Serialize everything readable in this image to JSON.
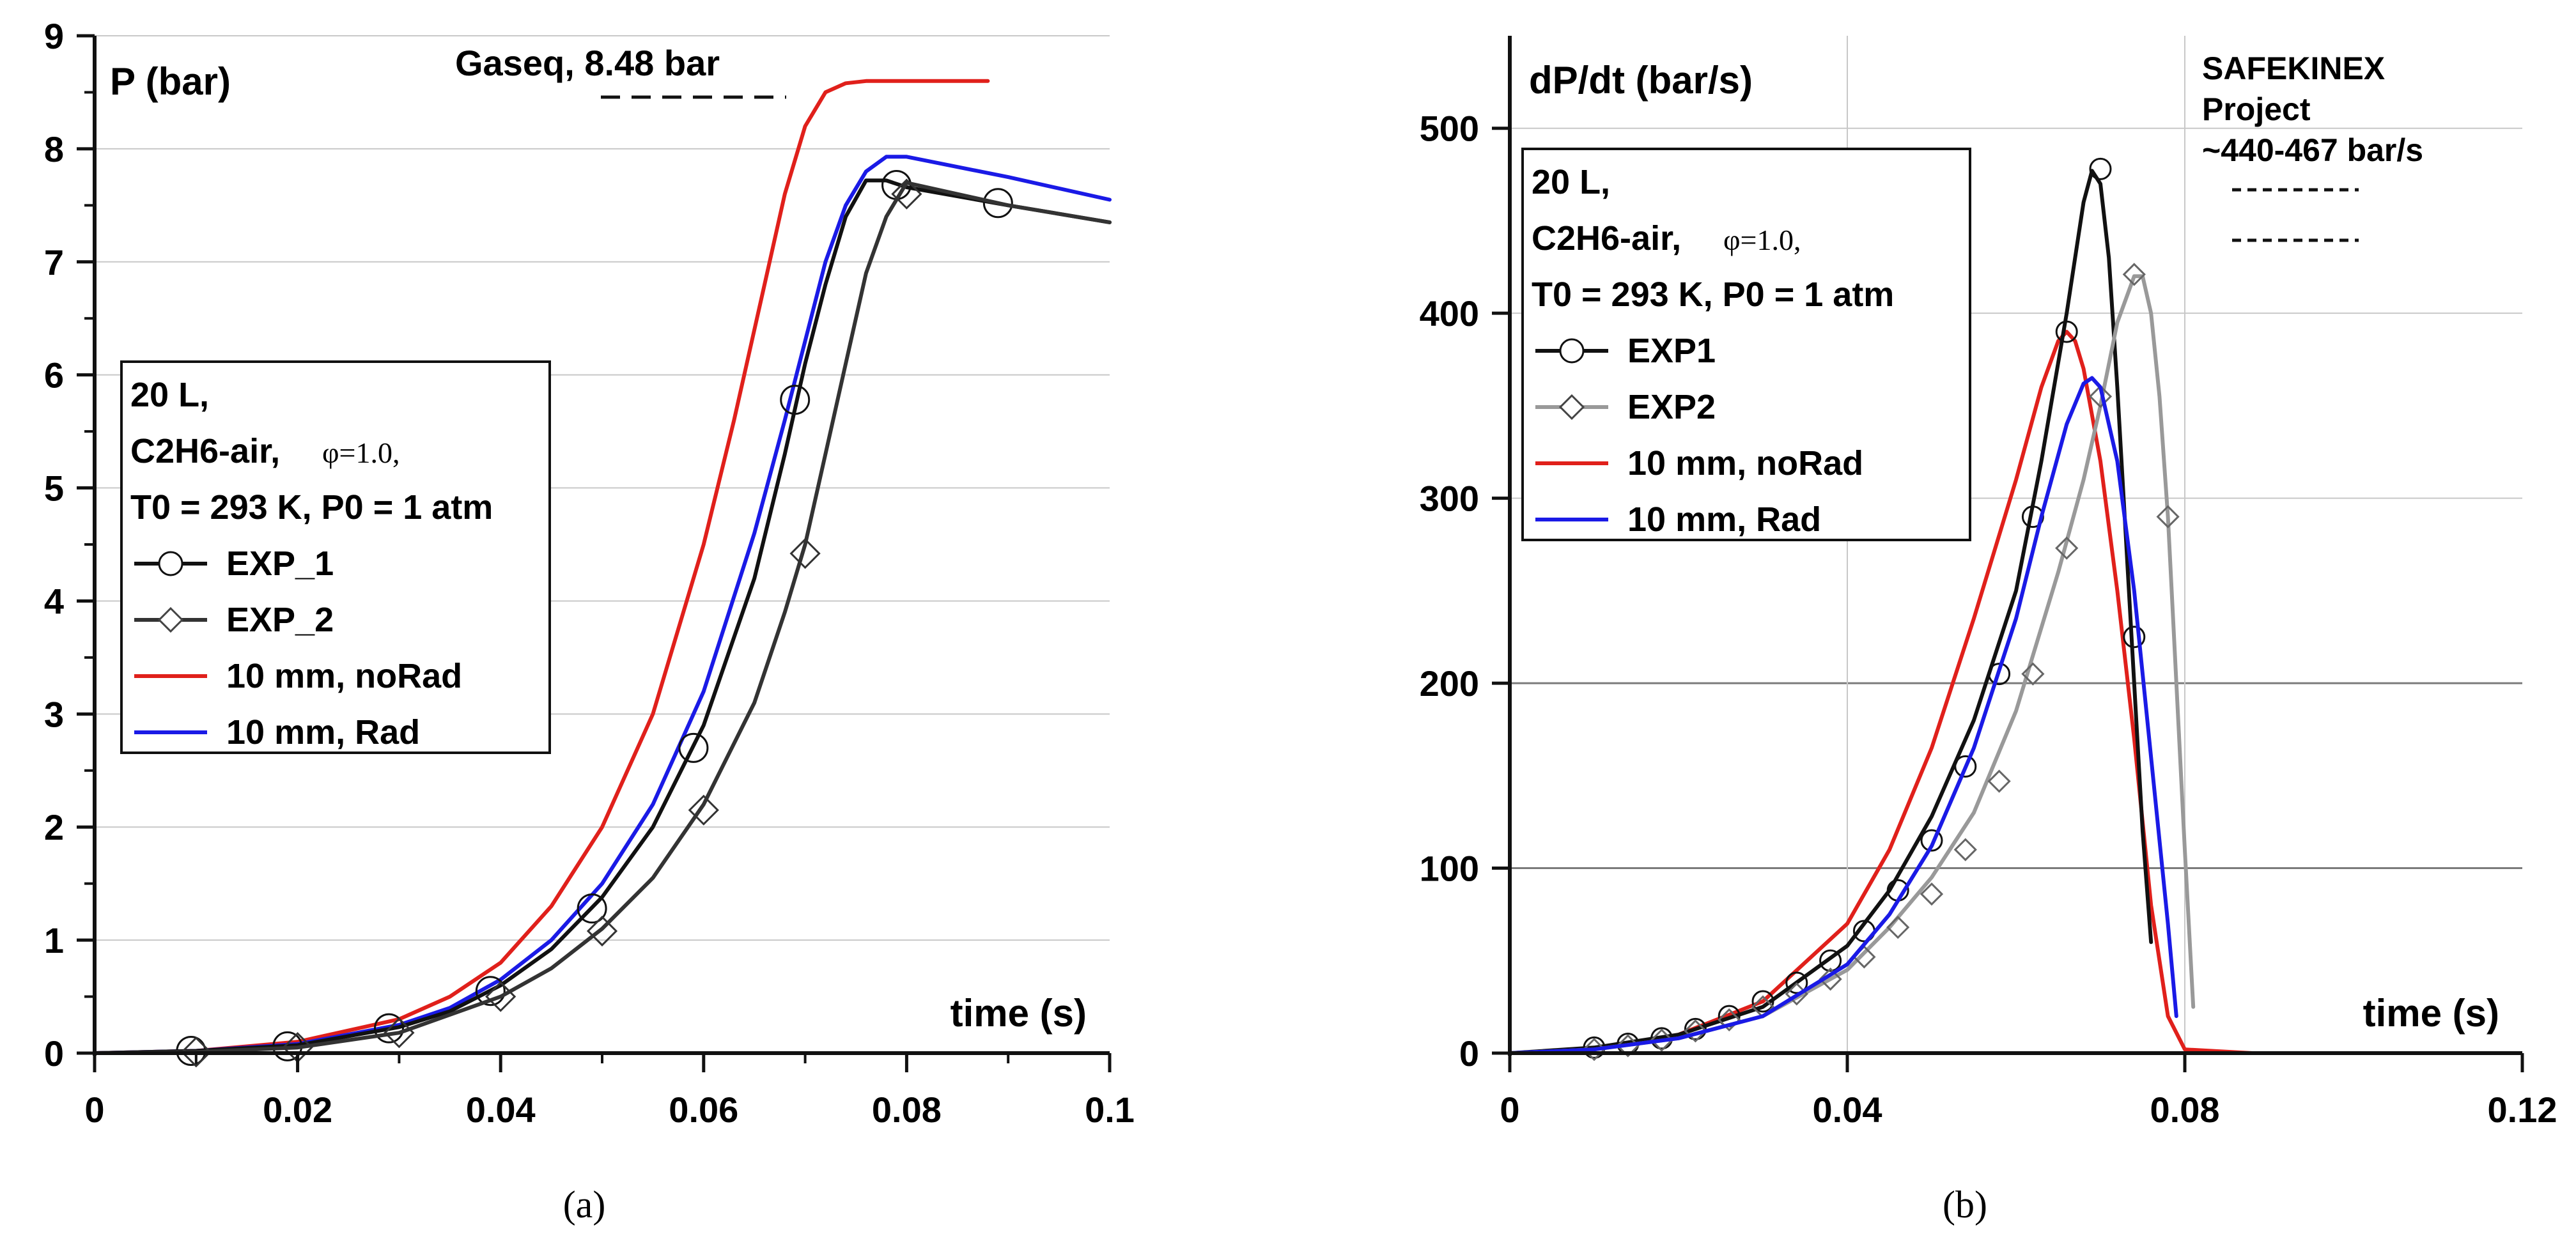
{
  "colors": {
    "red": "#e0201b",
    "blue": "#1a1ae6",
    "black": "#111111",
    "gray": "#999999",
    "grid": "#c8c8c8",
    "grid_dark": "#7a7a7a"
  },
  "chart_data": [
    {
      "type": "line",
      "panel_caption": "(a)",
      "ylabel": "P (bar)",
      "xlabel": "time (s)",
      "xlim": [
        0,
        0.1
      ],
      "ylim": [
        0,
        9
      ],
      "x_ticks": [
        0,
        0.02,
        0.04,
        0.06,
        0.08,
        0.1
      ],
      "x_tick_labels": [
        "0",
        "0.02",
        "0.04",
        "0.06",
        "0.08",
        "0.1"
      ],
      "y_ticks": [
        0,
        1,
        2,
        3,
        4,
        5,
        6,
        7,
        8,
        9
      ],
      "y_tick_labels": [
        "0",
        "1",
        "2",
        "3",
        "4",
        "5",
        "6",
        "7",
        "8",
        "9"
      ],
      "grid": "horizontal",
      "annotation": {
        "text": "Gaseq, 8.48 bar",
        "value": 8.48
      },
      "legend": {
        "position": "middle-left",
        "title_lines": [
          "20 L,",
          "T0 = 293 K, P0 = 1 atm"
        ],
        "mixture_text": "C2H6-air,",
        "phi_text": "φ=1.0,",
        "entries": [
          "EXP_1",
          "EXP_2",
          "10 mm, noRad",
          "10 mm, Rad"
        ]
      },
      "series": [
        {
          "name": "10 mm, noRad",
          "color": "#e0201b",
          "marker": "none",
          "x": [
            0,
            0.01,
            0.02,
            0.03,
            0.035,
            0.04,
            0.045,
            0.05,
            0.055,
            0.06,
            0.063,
            0.066,
            0.068,
            0.07,
            0.072,
            0.074,
            0.076,
            0.08,
            0.085,
            0.088
          ],
          "y": [
            0,
            0.02,
            0.1,
            0.3,
            0.5,
            0.8,
            1.3,
            2.0,
            3.0,
            4.5,
            5.6,
            6.8,
            7.6,
            8.2,
            8.5,
            8.58,
            8.6,
            8.6,
            8.6,
            8.6
          ]
        },
        {
          "name": "10 mm, Rad",
          "color": "#1a1ae6",
          "marker": "none",
          "x": [
            0,
            0.01,
            0.02,
            0.03,
            0.035,
            0.04,
            0.045,
            0.05,
            0.055,
            0.06,
            0.065,
            0.068,
            0.07,
            0.072,
            0.074,
            0.076,
            0.078,
            0.08,
            0.09,
            0.1
          ],
          "y": [
            0,
            0.02,
            0.08,
            0.25,
            0.4,
            0.65,
            1.0,
            1.5,
            2.2,
            3.2,
            4.6,
            5.6,
            6.3,
            7.0,
            7.5,
            7.8,
            7.93,
            7.93,
            7.75,
            7.55
          ]
        },
        {
          "name": "EXP_1",
          "color": "#111111",
          "marker": "circle",
          "x": [
            0,
            0.01,
            0.02,
            0.03,
            0.035,
            0.04,
            0.045,
            0.05,
            0.055,
            0.06,
            0.065,
            0.068,
            0.07,
            0.072,
            0.074,
            0.076,
            0.078,
            0.08,
            0.09,
            0.1
          ],
          "y": [
            0,
            0.02,
            0.07,
            0.23,
            0.37,
            0.6,
            0.92,
            1.38,
            2.0,
            2.9,
            4.2,
            5.3,
            6.1,
            6.8,
            7.4,
            7.72,
            7.72,
            7.66,
            7.5,
            7.35
          ],
          "marker_x": [
            0.0095,
            0.019,
            0.029,
            0.039,
            0.049,
            0.059,
            0.069,
            0.079,
            0.089
          ],
          "marker_y": [
            0.02,
            0.06,
            0.22,
            0.55,
            1.28,
            2.7,
            5.78,
            7.68,
            7.52
          ]
        },
        {
          "name": "EXP_2",
          "color": "#333333",
          "marker": "diamond",
          "x": [
            0,
            0.01,
            0.02,
            0.03,
            0.04,
            0.045,
            0.05,
            0.055,
            0.06,
            0.065,
            0.068,
            0.07,
            0.072,
            0.074,
            0.076,
            0.078,
            0.08,
            0.09,
            0.1
          ],
          "y": [
            0,
            0.01,
            0.05,
            0.18,
            0.5,
            0.75,
            1.1,
            1.55,
            2.2,
            3.1,
            3.9,
            4.5,
            5.3,
            6.1,
            6.9,
            7.4,
            7.7,
            7.5,
            7.35
          ],
          "marker_x": [
            0.01,
            0.02,
            0.03,
            0.04,
            0.05,
            0.06,
            0.07,
            0.08
          ],
          "marker_y": [
            0.01,
            0.05,
            0.18,
            0.5,
            1.08,
            2.15,
            4.42,
            7.6
          ]
        }
      ]
    },
    {
      "type": "line",
      "panel_caption": "(b)",
      "ylabel": "dP/dt (bar/s)",
      "xlabel": "time (s)",
      "xlim": [
        0,
        0.12
      ],
      "ylim": [
        0,
        550
      ],
      "x_ticks": [
        0,
        0.04,
        0.08,
        0.12
      ],
      "x_tick_labels": [
        "0",
        "0.04",
        "0.08",
        "0.12"
      ],
      "y_ticks": [
        0,
        100,
        200,
        300,
        400,
        500
      ],
      "y_tick_labels": [
        "0",
        "100",
        "200",
        "300",
        "400",
        "500"
      ],
      "grid": "both",
      "annotation": {
        "lines": [
          "SAFEKINEX",
          "Project",
          "~440-467 bar/s"
        ],
        "range": [
          440,
          467
        ]
      },
      "legend": {
        "position": "top-left",
        "title_lines": [
          "20 L,",
          "T0 = 293 K, P0 = 1 atm"
        ],
        "mixture_text": "C2H6-air,",
        "phi_text": "φ=1.0,",
        "entries": [
          "EXP1",
          "EXP2",
          "10 mm, noRad",
          "10 mm, Rad"
        ]
      },
      "series": [
        {
          "name": "10 mm, noRad",
          "color": "#e0201b",
          "marker": "none",
          "x": [
            0,
            0.01,
            0.02,
            0.03,
            0.04,
            0.045,
            0.05,
            0.055,
            0.06,
            0.063,
            0.065,
            0.066,
            0.067,
            0.068,
            0.07,
            0.072,
            0.074,
            0.076,
            0.078,
            0.08,
            0.088
          ],
          "y": [
            0,
            2,
            10,
            28,
            70,
            110,
            165,
            235,
            310,
            360,
            385,
            390,
            385,
            370,
            320,
            250,
            170,
            80,
            20,
            2,
            0
          ]
        },
        {
          "name": "EXP1",
          "color": "#111111",
          "marker": "circle",
          "x": [
            0,
            0.01,
            0.02,
            0.03,
            0.04,
            0.045,
            0.05,
            0.055,
            0.06,
            0.063,
            0.066,
            0.068,
            0.069,
            0.07,
            0.071,
            0.072,
            0.073,
            0.074,
            0.075,
            0.076
          ],
          "y": [
            0,
            3,
            10,
            25,
            58,
            88,
            128,
            180,
            250,
            320,
            400,
            460,
            477,
            470,
            430,
            360,
            280,
            200,
            120,
            60
          ],
          "marker_x": [
            0.01,
            0.014,
            0.018,
            0.022,
            0.026,
            0.03,
            0.034,
            0.038,
            0.042,
            0.046,
            0.05,
            0.054,
            0.058,
            0.062,
            0.066,
            0.07,
            0.074
          ],
          "marker_y": [
            3,
            5,
            8,
            13,
            20,
            28,
            38,
            50,
            66,
            88,
            115,
            155,
            205,
            290,
            390,
            478,
            225
          ]
        },
        {
          "name": "EXP2",
          "color": "#999999",
          "marker": "diamond",
          "x": [
            0,
            0.01,
            0.02,
            0.03,
            0.04,
            0.045,
            0.05,
            0.055,
            0.06,
            0.065,
            0.068,
            0.07,
            0.072,
            0.074,
            0.075,
            0.076,
            0.077,
            0.078,
            0.079,
            0.08,
            0.081
          ],
          "y": [
            0,
            2,
            8,
            20,
            45,
            68,
            95,
            130,
            185,
            260,
            310,
            350,
            395,
            420,
            420,
            400,
            355,
            290,
            200,
            110,
            25
          ],
          "marker_x": [
            0.01,
            0.014,
            0.018,
            0.022,
            0.026,
            0.03,
            0.034,
            0.038,
            0.042,
            0.046,
            0.05,
            0.054,
            0.058,
            0.062,
            0.066,
            0.07,
            0.074,
            0.078
          ],
          "marker_y": [
            2,
            4,
            7,
            12,
            18,
            25,
            32,
            40,
            52,
            68,
            86,
            110,
            147,
            205,
            273,
            355,
            421,
            290
          ]
        },
        {
          "name": "10 mm, Rad",
          "color": "#1a1ae6",
          "marker": "none",
          "x": [
            0,
            0.01,
            0.02,
            0.03,
            0.04,
            0.045,
            0.05,
            0.055,
            0.06,
            0.063,
            0.066,
            0.068,
            0.069,
            0.07,
            0.072,
            0.074,
            0.076,
            0.078,
            0.079
          ],
          "y": [
            0,
            2,
            8,
            20,
            48,
            75,
            112,
            165,
            235,
            290,
            340,
            362,
            365,
            360,
            320,
            250,
            160,
            70,
            20
          ]
        }
      ]
    }
  ]
}
